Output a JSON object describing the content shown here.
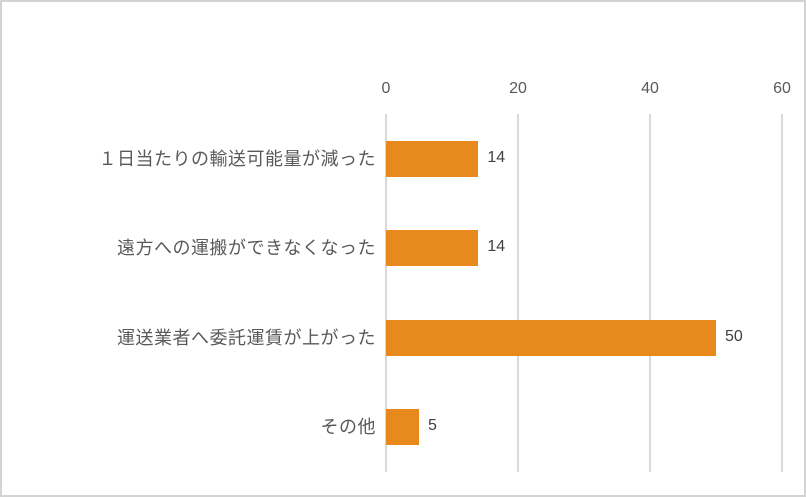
{
  "chart_data": {
    "type": "bar",
    "orientation": "horizontal",
    "title": "",
    "xlabel": "",
    "ylabel": "",
    "categories": [
      "１日当たりの輸送可能量が減った",
      "遠方への運搬ができなくなった",
      "運送業者へ委託運賃が上がった",
      "その他"
    ],
    "values": [
      14,
      14,
      50,
      5
    ],
    "data_labels": [
      "14",
      "14",
      "50",
      "5"
    ],
    "xlim": [
      0,
      60
    ],
    "xticks": [
      0,
      20,
      40,
      60
    ],
    "xtick_labels": [
      "0",
      "20",
      "40",
      "60"
    ],
    "grid": true,
    "legend": false,
    "axis_position": "top",
    "bar_color": "#e8891d",
    "gridline_color": "#d9d9d9",
    "axis_label_color": "#595959",
    "category_label_color": "#595959",
    "value_label_color": "#404040",
    "frame_border_color": "#d3d3d3",
    "background_color": "#ffffff"
  }
}
